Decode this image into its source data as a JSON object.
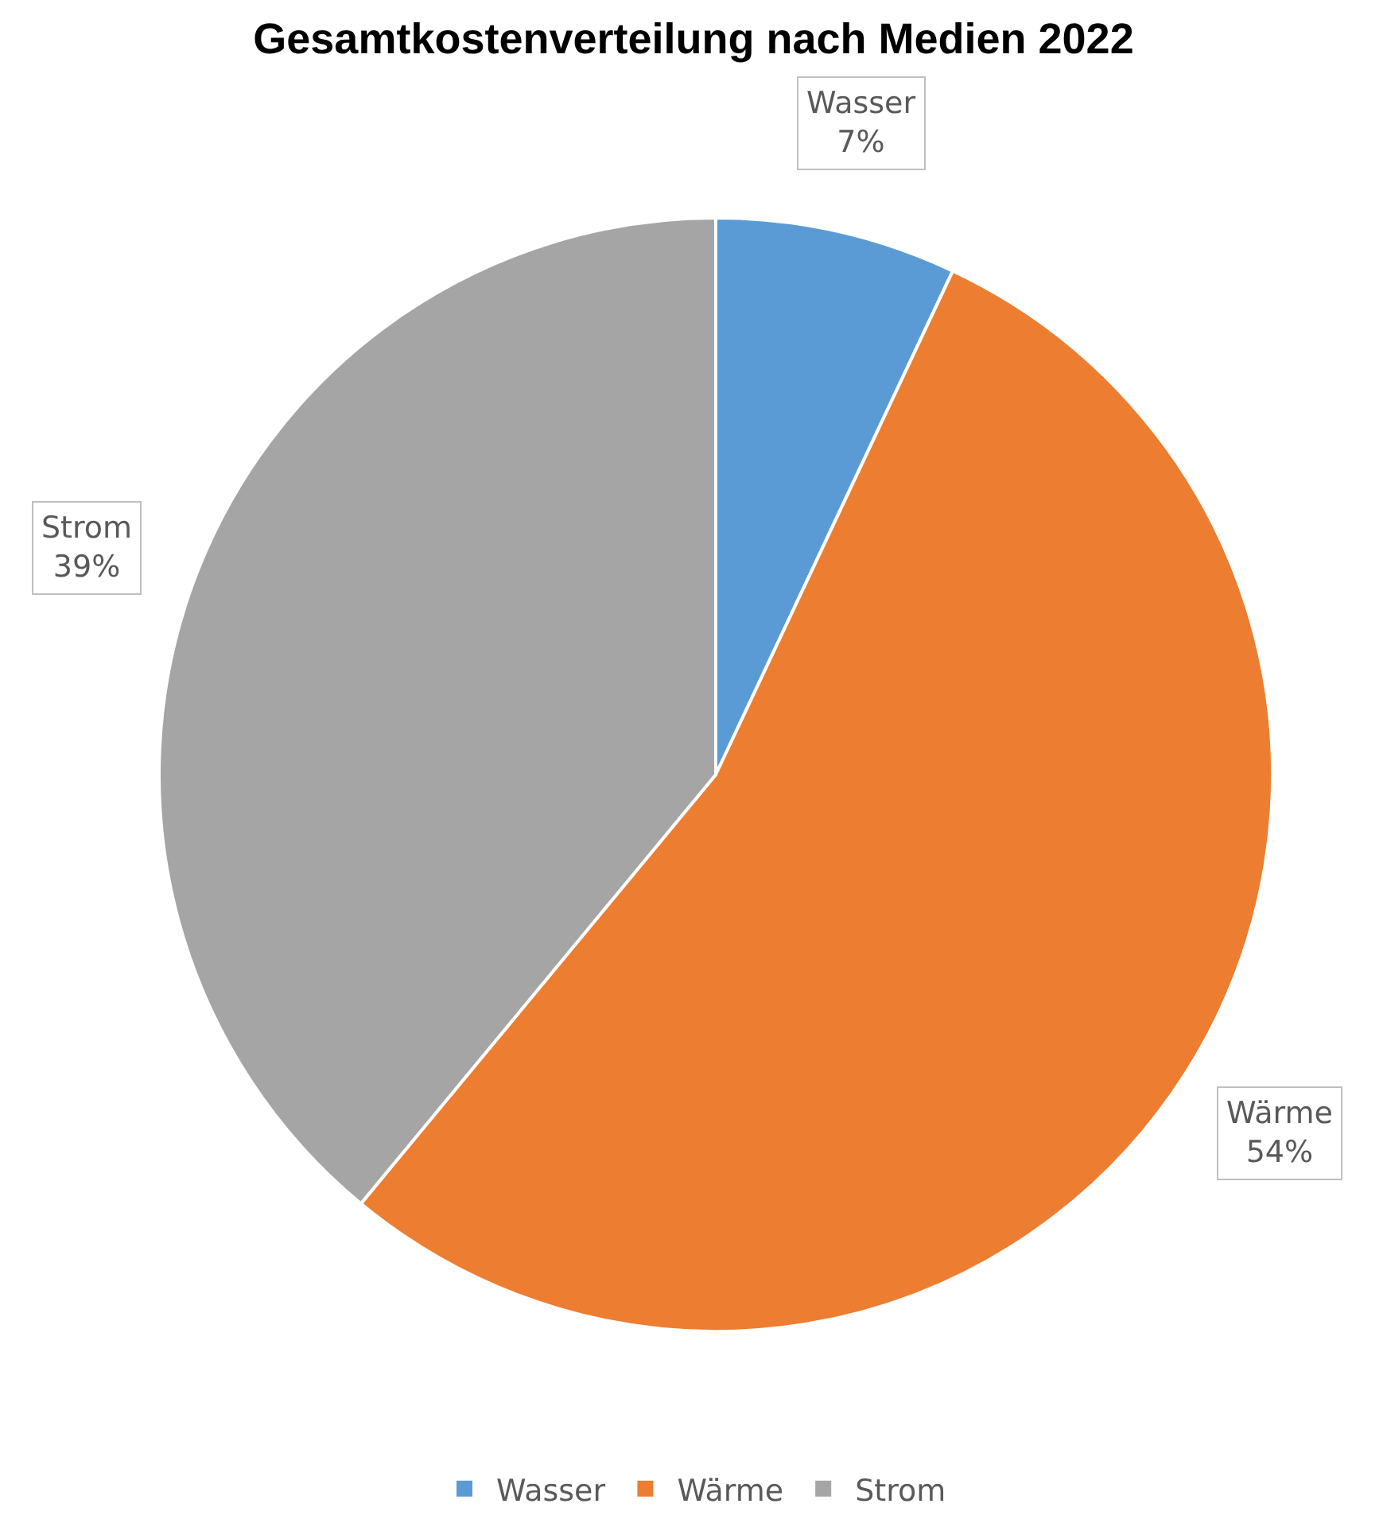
{
  "chart_data": {
    "type": "pie",
    "title": "Gesamtkostenverteilung nach Medien 2022",
    "categories": [
      "Wasser",
      "Wärme",
      "Strom"
    ],
    "values": [
      7,
      54,
      39
    ],
    "value_labels": [
      "7%",
      "54%",
      "39%"
    ],
    "colors": [
      "#5b9bd5",
      "#ed7d31",
      "#a5a5a5"
    ],
    "legend": "bottom"
  }
}
